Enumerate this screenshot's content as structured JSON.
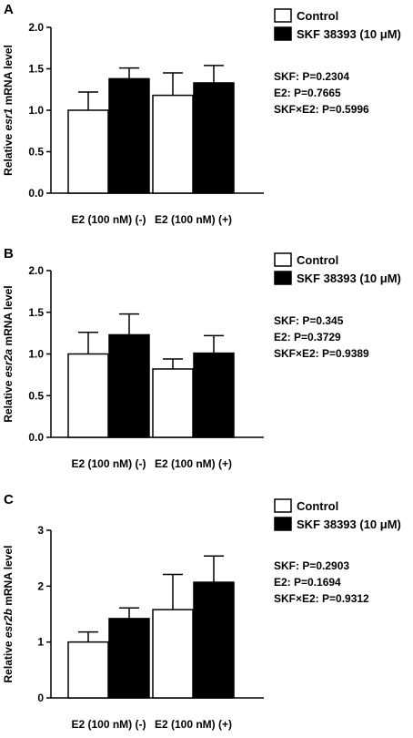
{
  "colors": {
    "control_fill": "#ffffff",
    "treatment_fill": "#000000",
    "stroke": "#000000"
  },
  "chart_data": [
    {
      "type": "bar",
      "panel": "A",
      "ylabel_prefix": "Relative ",
      "ylabel_gene": "esr1",
      "ylabel_suffix": " mRNA level",
      "categories": [
        "E2 (100 nM) (-)",
        "E2 (100 nM) (+)"
      ],
      "ylim": [
        0,
        2.0
      ],
      "yticks": [
        0,
        0.5,
        1.0,
        1.5,
        2.0
      ],
      "ytick_labels": [
        "0.0",
        "0.5",
        "1.0",
        "1.5",
        "2.0"
      ],
      "grid": false,
      "legend_position": "top-right",
      "series": [
        {
          "name": "Control",
          "values": [
            1.0,
            1.18
          ],
          "errors": [
            0.22,
            0.27
          ]
        },
        {
          "name": "SKF 38393 (10 μM)",
          "values": [
            1.38,
            1.33
          ],
          "errors": [
            0.13,
            0.21
          ]
        }
      ],
      "annotations": [
        "SKF: P=0.2304",
        "E2: P=0.7665",
        "SKF×E2: P=0.5996"
      ]
    },
    {
      "type": "bar",
      "panel": "B",
      "ylabel_prefix": "Relative ",
      "ylabel_gene": "esr2a",
      "ylabel_suffix": " mRNA level",
      "categories": [
        "E2 (100 nM) (-)",
        "E2 (100 nM) (+)"
      ],
      "ylim": [
        0,
        2.0
      ],
      "yticks": [
        0,
        0.5,
        1.0,
        1.5,
        2.0
      ],
      "ytick_labels": [
        "0.0",
        "0.5",
        "1.0",
        "1.5",
        "2.0"
      ],
      "grid": false,
      "legend_position": "top-right",
      "series": [
        {
          "name": "Control",
          "values": [
            1.0,
            0.82
          ],
          "errors": [
            0.26,
            0.12
          ]
        },
        {
          "name": "SKF 38393 (10 μM)",
          "values": [
            1.23,
            1.01
          ],
          "errors": [
            0.25,
            0.21
          ]
        }
      ],
      "annotations": [
        "SKF: P=0.345",
        "E2: P=0.3729",
        "SKF×E2: P=0.9389"
      ]
    },
    {
      "type": "bar",
      "panel": "C",
      "ylabel_prefix": "Relative ",
      "ylabel_gene": "esr2b",
      "ylabel_suffix": " mRNA level",
      "categories": [
        "E2 (100 nM) (-)",
        "E2 (100 nM) (+)"
      ],
      "ylim": [
        0,
        3
      ],
      "yticks": [
        0,
        1,
        2,
        3
      ],
      "ytick_labels": [
        "0",
        "1",
        "2",
        "3"
      ],
      "grid": false,
      "legend_position": "top-right",
      "series": [
        {
          "name": "Control",
          "values": [
            1.0,
            1.58
          ],
          "errors": [
            0.18,
            0.63
          ]
        },
        {
          "name": "SKF 38393 (10 μM)",
          "values": [
            1.42,
            2.07
          ],
          "errors": [
            0.19,
            0.47
          ]
        }
      ],
      "annotations": [
        "SKF: P=0.2903",
        "E2: P=0.1694",
        "SKF×E2: P=0.9312"
      ]
    }
  ]
}
